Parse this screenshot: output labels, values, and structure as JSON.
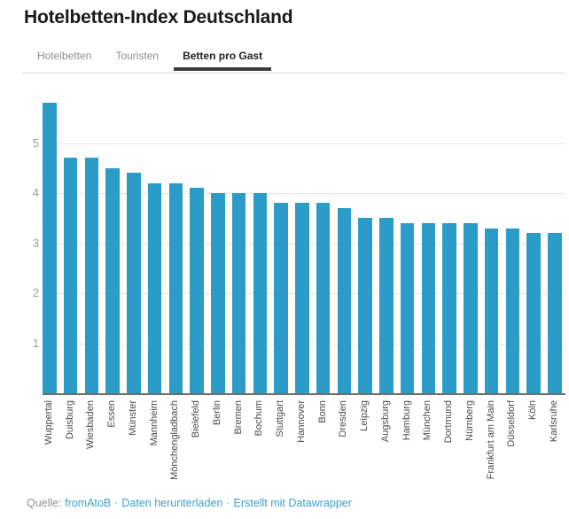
{
  "page": {
    "title": "Hotelbetten-Index Deutschland"
  },
  "tabs": {
    "items": [
      {
        "label": "Hotelbetten",
        "active": false
      },
      {
        "label": "Touristen",
        "active": false
      },
      {
        "label": "Betten pro Gast",
        "active": true
      }
    ]
  },
  "chart_data": {
    "type": "bar",
    "title": "Hotelbetten-Index Deutschland",
    "series_name": "Betten pro Gast",
    "categories": [
      "Wuppertal",
      "Duisburg",
      "Wiesbaden",
      "Essen",
      "Münster",
      "Mannheim",
      "Mönchengladbach",
      "Bielefeld",
      "Berlin",
      "Bremen",
      "Bochum",
      "Stuttgart",
      "Hannover",
      "Bonn",
      "Dresden",
      "Leipzig",
      "Augsburg",
      "Hamburg",
      "München",
      "Dortmund",
      "Nürnberg",
      "Frankfurt am Main",
      "Düsseldorf",
      "Köln",
      "Karlsruhe"
    ],
    "values": [
      5.8,
      4.7,
      4.7,
      4.5,
      4.4,
      4.2,
      4.2,
      4.1,
      4.0,
      4.0,
      4.0,
      3.8,
      3.8,
      3.8,
      3.7,
      3.5,
      3.5,
      3.4,
      3.4,
      3.4,
      3.4,
      3.3,
      3.3,
      3.2,
      3.2
    ],
    "xlabel": "",
    "ylabel": "",
    "yticks": [
      1,
      2,
      3,
      4,
      5
    ],
    "ylim": [
      0,
      5.9
    ],
    "grid": true,
    "legend_position": "none",
    "bar_color": "#2b9cc7"
  },
  "footer": {
    "source_label": "Quelle:",
    "links": [
      "fromAtoB",
      "Daten herunterladen",
      "Erstellt mit Datawrapper"
    ],
    "separator": "·"
  },
  "colors": {
    "bar": "#2b9cc7",
    "link": "#3da0ce",
    "active_tab_underline": "#3c3c3c",
    "gridline": "#e4e4e4",
    "axis_line": "#6f6f6f"
  }
}
